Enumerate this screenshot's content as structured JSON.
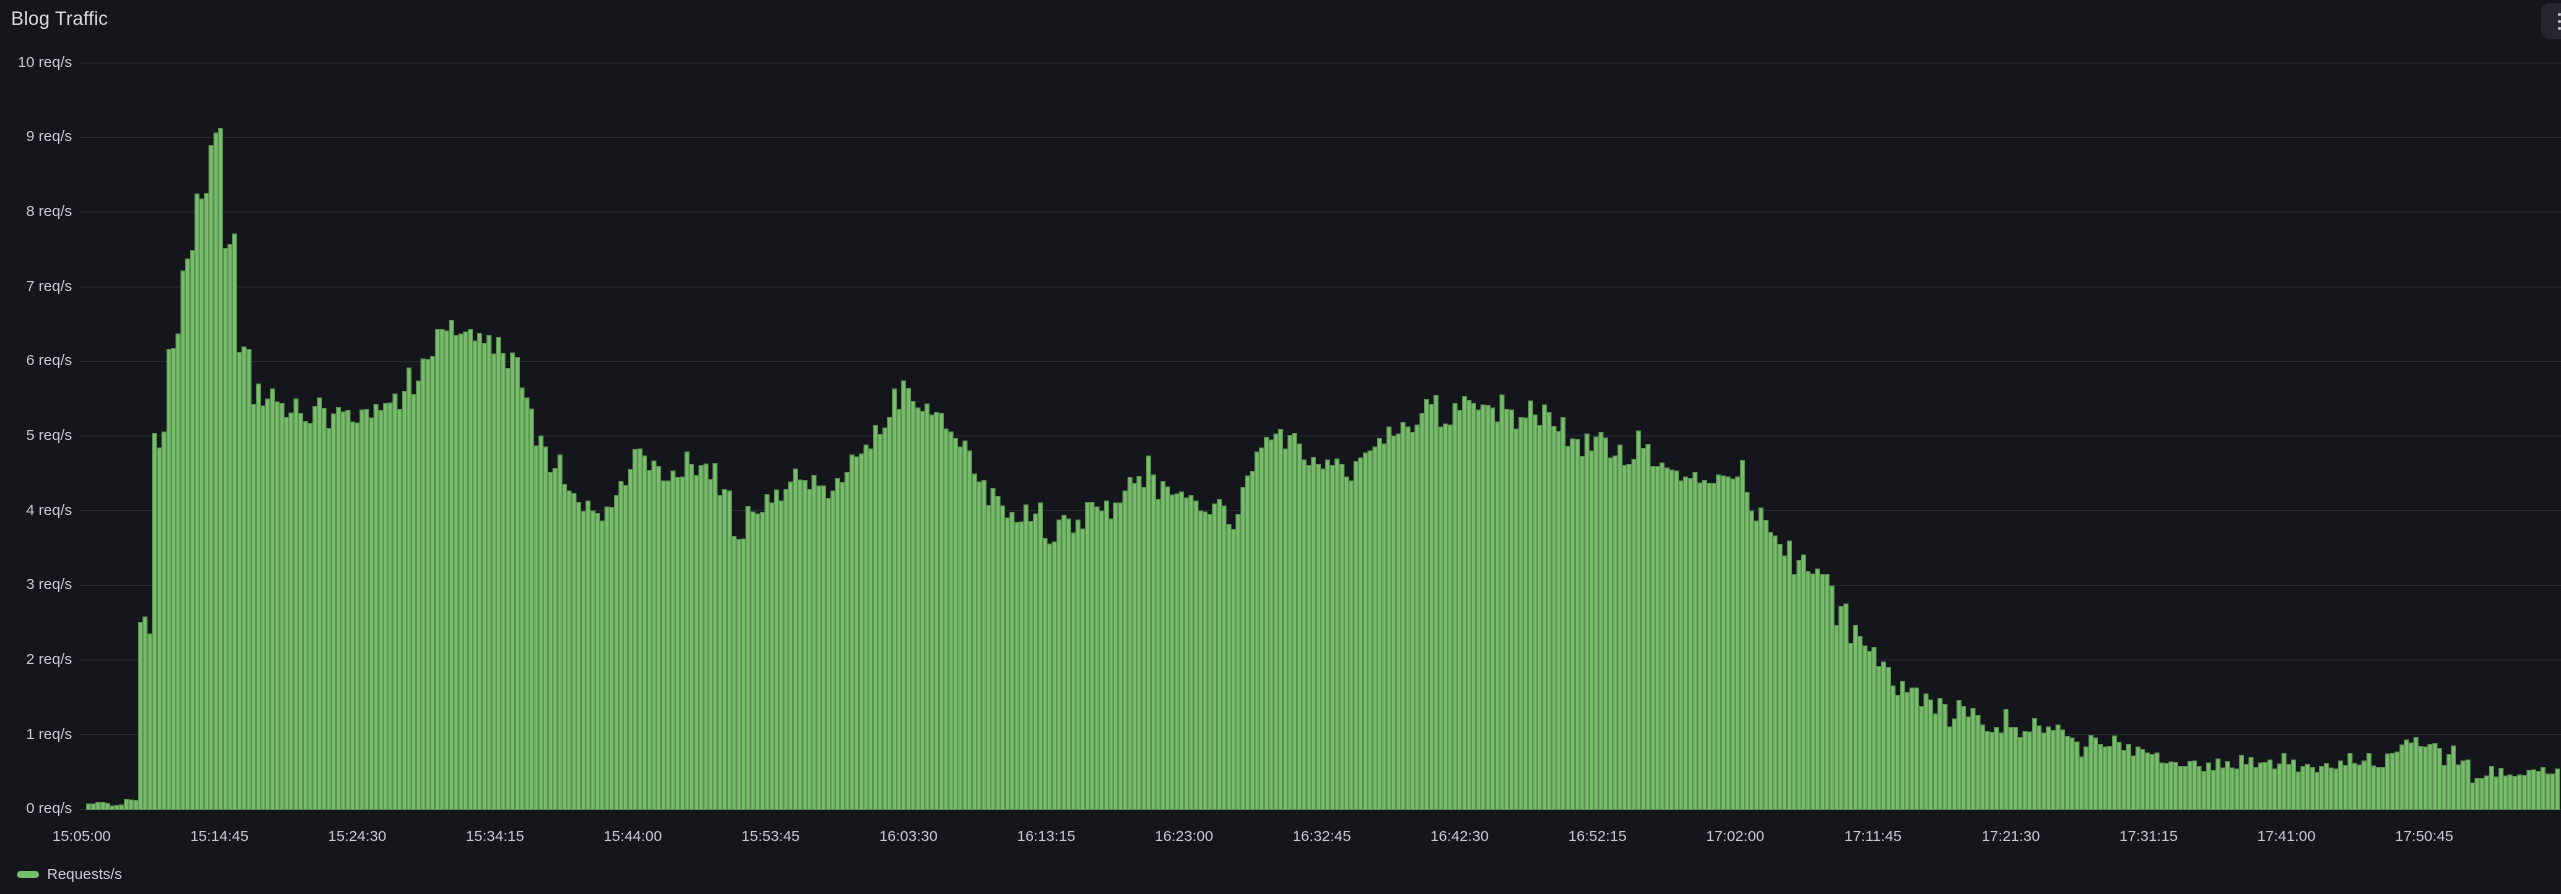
{
  "panel": {
    "title": "Blog Traffic"
  },
  "menu": {
    "icon": "kebab-vertical-icon"
  },
  "legend": {
    "label": "Requests/s",
    "marker_color": "#73bf69"
  },
  "colors": {
    "background": "#14161b",
    "bar_fill": "#77bd6b",
    "bar_edge": "#5b9252",
    "grid": "#272a33",
    "axis_text": "#c9cad4",
    "title_text": "#dadbe0",
    "menu_bg": "#26272e",
    "menu_dots": "#b4b6bd"
  },
  "chart_data": {
    "type": "bar",
    "title": "Blog Traffic",
    "ylabel": "req/s",
    "ylim": [
      0,
      10
    ],
    "grid": "horizontal",
    "legend_position": "bottom-left",
    "y_tick_labels": [
      "0 req/s",
      "1 req/s",
      "2 req/s",
      "3 req/s",
      "4 req/s",
      "5 req/s",
      "6 req/s",
      "7 req/s",
      "8 req/s",
      "9 req/s",
      "10 req/s"
    ],
    "x_tick_labels": [
      "15:05:00",
      "15:14:45",
      "15:24:30",
      "15:34:15",
      "15:44:00",
      "15:53:45",
      "16:03:30",
      "16:13:15",
      "16:23:00",
      "16:32:45",
      "16:42:30",
      "16:52:15",
      "17:02:00",
      "17:11:45",
      "17:21:30",
      "17:31:15",
      "17:41:00",
      "17:50:45"
    ],
    "x_tick_interval": "9m45s",
    "time_start": "15:05:00",
    "time_end": "18:00:30",
    "bar_interval_seconds": 20,
    "sample_interval_seconds": 60,
    "series": [
      {
        "name": "Requests/s",
        "color": "#73bf69",
        "values_per_minute": [
          0.07,
          0.08,
          0.05,
          0.12,
          2.5,
          5.0,
          6.3,
          7.4,
          8.3,
          9.05,
          7.6,
          6.1,
          5.55,
          5.45,
          5.4,
          5.35,
          5.3,
          5.25,
          5.35,
          5.3,
          5.3,
          5.35,
          5.45,
          5.6,
          5.95,
          6.45,
          6.5,
          6.4,
          6.3,
          6.2,
          5.95,
          5.4,
          5.0,
          4.6,
          4.3,
          4.1,
          4.0,
          4.1,
          4.45,
          4.7,
          4.55,
          4.5,
          4.45,
          4.55,
          4.5,
          4.2,
          3.7,
          3.9,
          4.1,
          4.2,
          4.4,
          4.35,
          4.3,
          4.4,
          4.6,
          4.9,
          5.0,
          5.3,
          5.75,
          5.45,
          5.2,
          5.0,
          4.8,
          4.5,
          4.2,
          4.0,
          4.0,
          4.0,
          3.7,
          3.85,
          3.8,
          4.0,
          4.1,
          4.2,
          4.3,
          4.45,
          4.35,
          4.25,
          4.1,
          4.0,
          4.0,
          3.85,
          4.45,
          4.85,
          4.95,
          4.9,
          4.75,
          4.7,
          4.6,
          4.55,
          4.75,
          4.9,
          5.0,
          5.1,
          5.2,
          5.5,
          5.25,
          5.4,
          5.35,
          5.3,
          5.35,
          5.25,
          5.4,
          5.45,
          5.1,
          5.0,
          4.87,
          4.9,
          4.78,
          4.65,
          4.95,
          4.7,
          4.55,
          4.53,
          4.45,
          4.25,
          4.45,
          4.4,
          4.1,
          3.8,
          3.5,
          3.3,
          3.1,
          2.9,
          2.6,
          2.4,
          2.15,
          1.9,
          1.65,
          1.55,
          1.5,
          1.42,
          1.35,
          1.25,
          1.15,
          1.1,
          1.1,
          1.05,
          1.1,
          1.05,
          1.0,
          0.95,
          0.95,
          0.9,
          0.8,
          0.75,
          0.7,
          0.65,
          0.62,
          0.6,
          0.58,
          0.6,
          0.62,
          0.63,
          0.62,
          0.58,
          0.57,
          0.55,
          0.55,
          0.6,
          0.67,
          0.68,
          0.52,
          0.75,
          0.88,
          0.9,
          0.87,
          0.8,
          0.6,
          0.4,
          0.45,
          0.5,
          0.48,
          0.5,
          0.5,
          0.5
        ]
      }
    ]
  }
}
